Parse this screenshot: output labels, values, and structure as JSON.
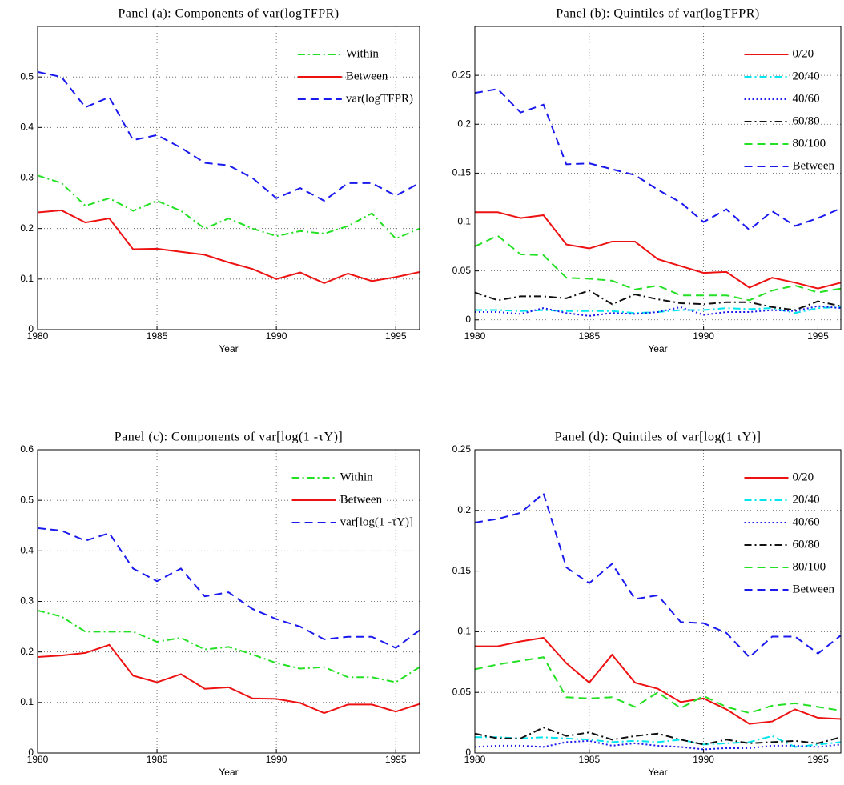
{
  "chart_data": [
    {
      "type": "line",
      "title": "Panel (a): Components of var(logTFPR)",
      "x_label": "Year",
      "x": [
        1980,
        1981,
        1982,
        1983,
        1984,
        1985,
        1986,
        1987,
        1988,
        1989,
        1990,
        1991,
        1992,
        1993,
        1994,
        1995,
        1996
      ],
      "xlim": [
        1980,
        1996
      ],
      "xticks": [
        1980,
        1985,
        1990,
        1995
      ],
      "ylim": [
        0,
        0.6
      ],
      "yticks": [
        0,
        0.1,
        0.2,
        0.3,
        0.4,
        0.5
      ],
      "grid": true,
      "legend": "upper right",
      "series": [
        {
          "name": "Within",
          "color": "#22e022",
          "dash": "dashdot",
          "values": [
            0.305,
            0.29,
            0.245,
            0.26,
            0.235,
            0.255,
            0.235,
            0.2,
            0.22,
            0.2,
            0.185,
            0.195,
            0.19,
            0.205,
            0.23,
            0.18,
            0.2
          ]
        },
        {
          "name": "Between",
          "color": "#ee1111",
          "dash": "solid",
          "values": [
            0.232,
            0.236,
            0.212,
            0.22,
            0.159,
            0.16,
            0.154,
            0.148,
            0.133,
            0.12,
            0.1,
            0.113,
            0.092,
            0.111,
            0.096,
            0.104,
            0.114
          ]
        },
        {
          "name": "var(logTFPR)",
          "color": "#1a1aee",
          "dash": "dashed",
          "values": [
            0.51,
            0.5,
            0.44,
            0.46,
            0.375,
            0.385,
            0.36,
            0.33,
            0.325,
            0.3,
            0.26,
            0.28,
            0.255,
            0.29,
            0.29,
            0.265,
            0.29
          ]
        }
      ]
    },
    {
      "type": "line",
      "title": "Panel (b): Quintiles of var(logTFPR)",
      "x_label": "Year",
      "x": [
        1980,
        1981,
        1982,
        1983,
        1984,
        1985,
        1986,
        1987,
        1988,
        1989,
        1990,
        1991,
        1992,
        1993,
        1994,
        1995,
        1996
      ],
      "xlim": [
        1980,
        1996
      ],
      "xticks": [
        1980,
        1985,
        1990,
        1995
      ],
      "ylim": [
        -0.01,
        0.3
      ],
      "yticks": [
        0,
        0.05,
        0.1,
        0.15,
        0.2,
        0.25
      ],
      "grid": true,
      "legend": "upper right",
      "series": [
        {
          "name": "0/20",
          "color": "#ee1111",
          "dash": "solid",
          "values": [
            0.11,
            0.11,
            0.104,
            0.107,
            0.077,
            0.073,
            0.08,
            0.08,
            0.062,
            0.055,
            0.048,
            0.049,
            0.033,
            0.043,
            0.038,
            0.032,
            0.038
          ]
        },
        {
          "name": "20/40",
          "color": "#00e5ee",
          "dash": "dashdot",
          "values": [
            0.01,
            0.01,
            0.009,
            0.01,
            0.009,
            0.009,
            0.009,
            0.007,
            0.008,
            0.01,
            0.01,
            0.012,
            0.011,
            0.012,
            0.007,
            0.012,
            0.013
          ]
        },
        {
          "name": "40/60",
          "color": "#1a1aee",
          "dash": "dotted",
          "values": [
            0.008,
            0.008,
            0.006,
            0.012,
            0.007,
            0.004,
            0.007,
            0.006,
            0.008,
            0.013,
            0.005,
            0.008,
            0.008,
            0.01,
            0.009,
            0.014,
            0.012
          ]
        },
        {
          "name": "60/80",
          "color": "#111111",
          "dash": "dashdot",
          "values": [
            0.028,
            0.02,
            0.024,
            0.024,
            0.022,
            0.03,
            0.016,
            0.026,
            0.021,
            0.017,
            0.016,
            0.018,
            0.018,
            0.013,
            0.01,
            0.019,
            0.014
          ]
        },
        {
          "name": "80/100",
          "color": "#22e022",
          "dash": "dashed",
          "values": [
            0.075,
            0.086,
            0.067,
            0.066,
            0.043,
            0.042,
            0.04,
            0.031,
            0.035,
            0.025,
            0.025,
            0.025,
            0.02,
            0.03,
            0.035,
            0.028,
            0.032
          ]
        },
        {
          "name": "Between",
          "color": "#1a1aee",
          "dash": "dashed",
          "values": [
            0.232,
            0.236,
            0.212,
            0.22,
            0.159,
            0.16,
            0.154,
            0.148,
            0.133,
            0.12,
            0.1,
            0.113,
            0.092,
            0.111,
            0.096,
            0.104,
            0.114
          ]
        }
      ]
    },
    {
      "type": "line",
      "title": "Panel (c): Components of var[log(1 -τY)]",
      "x_label": "Year",
      "x": [
        1980,
        1981,
        1982,
        1983,
        1984,
        1985,
        1986,
        1987,
        1988,
        1989,
        1990,
        1991,
        1992,
        1993,
        1994,
        1995,
        1996
      ],
      "xlim": [
        1980,
        1996
      ],
      "xticks": [
        1980,
        1985,
        1990,
        1995
      ],
      "ylim": [
        0,
        0.6
      ],
      "yticks": [
        0,
        0.1,
        0.2,
        0.3,
        0.4,
        0.5,
        0.6
      ],
      "grid": true,
      "legend": "upper right",
      "series": [
        {
          "name": "Within",
          "color": "#22e022",
          "dash": "dashdot",
          "values": [
            0.282,
            0.27,
            0.24,
            0.24,
            0.24,
            0.22,
            0.228,
            0.205,
            0.21,
            0.195,
            0.178,
            0.167,
            0.17,
            0.15,
            0.15,
            0.14,
            0.17
          ]
        },
        {
          "name": "Between",
          "color": "#ee1111",
          "dash": "solid",
          "values": [
            0.19,
            0.193,
            0.198,
            0.214,
            0.153,
            0.14,
            0.156,
            0.127,
            0.13,
            0.108,
            0.107,
            0.099,
            0.079,
            0.096,
            0.096,
            0.082,
            0.097
          ]
        },
        {
          "name": "var[log(1 -τY)]",
          "color": "#1a1aee",
          "dash": "dashed",
          "values": [
            0.445,
            0.44,
            0.42,
            0.435,
            0.365,
            0.34,
            0.365,
            0.31,
            0.318,
            0.285,
            0.265,
            0.25,
            0.225,
            0.23,
            0.23,
            0.208,
            0.243
          ]
        }
      ]
    },
    {
      "type": "line",
      "title": "Panel (d): Quintiles of var[log(1 τY)]",
      "x_label": "Year",
      "x": [
        1980,
        1981,
        1982,
        1983,
        1984,
        1985,
        1986,
        1987,
        1988,
        1989,
        1990,
        1991,
        1992,
        1993,
        1994,
        1995,
        1996
      ],
      "xlim": [
        1980,
        1996
      ],
      "xticks": [
        1980,
        1985,
        1990,
        1995
      ],
      "ylim": [
        0,
        0.25
      ],
      "yticks": [
        0,
        0.05,
        0.1,
        0.15,
        0.2,
        0.25
      ],
      "grid": true,
      "legend": "upper right",
      "series": [
        {
          "name": "0/20",
          "color": "#ee1111",
          "dash": "solid",
          "values": [
            0.088,
            0.088,
            0.092,
            0.095,
            0.074,
            0.058,
            0.081,
            0.058,
            0.053,
            0.042,
            0.045,
            0.036,
            0.024,
            0.026,
            0.036,
            0.029,
            0.028
          ]
        },
        {
          "name": "20/40",
          "color": "#00e5ee",
          "dash": "dashdot",
          "values": [
            0.013,
            0.013,
            0.012,
            0.013,
            0.012,
            0.011,
            0.009,
            0.01,
            0.009,
            0.011,
            0.007,
            0.008,
            0.009,
            0.014,
            0.005,
            0.007,
            0.009
          ]
        },
        {
          "name": "40/60",
          "color": "#1a1aee",
          "dash": "dotted",
          "values": [
            0.005,
            0.006,
            0.006,
            0.005,
            0.009,
            0.01,
            0.006,
            0.008,
            0.006,
            0.005,
            0.003,
            0.004,
            0.004,
            0.006,
            0.006,
            0.005,
            0.007
          ]
        },
        {
          "name": "60/80",
          "color": "#111111",
          "dash": "dashdot",
          "values": [
            0.016,
            0.012,
            0.012,
            0.021,
            0.014,
            0.017,
            0.011,
            0.014,
            0.016,
            0.011,
            0.007,
            0.011,
            0.008,
            0.009,
            0.01,
            0.008,
            0.013
          ]
        },
        {
          "name": "80/100",
          "color": "#22e022",
          "dash": "dashed",
          "values": [
            0.069,
            0.073,
            0.076,
            0.079,
            0.046,
            0.045,
            0.046,
            0.038,
            0.05,
            0.037,
            0.047,
            0.038,
            0.033,
            0.039,
            0.041,
            0.038,
            0.035
          ]
        },
        {
          "name": "Between",
          "color": "#1a1aee",
          "dash": "dashed",
          "values": [
            0.19,
            0.193,
            0.198,
            0.214,
            0.153,
            0.14,
            0.156,
            0.127,
            0.13,
            0.108,
            0.107,
            0.099,
            0.079,
            0.096,
            0.096,
            0.082,
            0.097
          ]
        }
      ]
    }
  ]
}
